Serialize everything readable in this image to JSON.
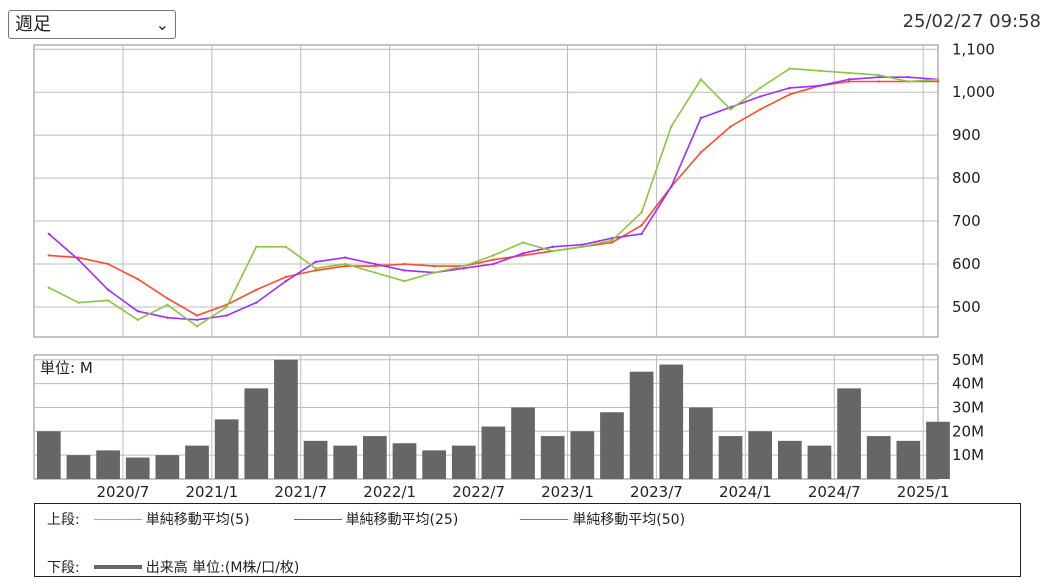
{
  "controls": {
    "period_value": "週足",
    "timestamp": "25/02/27 09:58"
  },
  "colors": {
    "candle_up": "#e53935",
    "candle_down": "#1f3a8a",
    "ma5": "#8cc63f",
    "ma25": "#9b30ff",
    "ma50": "#ff4a2a",
    "volume": "#666666",
    "grid": "#bcbcbc"
  },
  "chart_data": [
    {
      "type": "line",
      "panel": "price",
      "xlim": [
        "2020-01",
        "2025-02"
      ],
      "ylim": [
        430,
        1110
      ],
      "y_ticks": [
        "500",
        "600",
        "700",
        "800",
        "900",
        "1,000",
        "1,100"
      ],
      "x_tick_labels": [
        "2020/7",
        "2021/1",
        "2021/7",
        "2022/1",
        "2022/7",
        "2023/1",
        "2023/7",
        "2024/1",
        "2024/7",
        "2025/1"
      ],
      "x": [
        "2020-02",
        "2020-04",
        "2020-06",
        "2020-08",
        "2020-10",
        "2020-12",
        "2021-02",
        "2021-04",
        "2021-06",
        "2021-08",
        "2021-10",
        "2021-12",
        "2022-02",
        "2022-04",
        "2022-06",
        "2022-08",
        "2022-10",
        "2022-12",
        "2023-02",
        "2023-04",
        "2023-06",
        "2023-08",
        "2023-10",
        "2023-12",
        "2024-02",
        "2024-04",
        "2024-06",
        "2024-08",
        "2024-10",
        "2024-12",
        "2025-02"
      ],
      "series": [
        {
          "name": "単純移動平均(5)",
          "values": [
            545,
            510,
            515,
            470,
            505,
            455,
            500,
            640,
            640,
            590,
            600,
            580,
            560,
            580,
            595,
            620,
            650,
            630,
            640,
            655,
            720,
            920,
            1030,
            960,
            1010,
            1055,
            1050,
            1045,
            1040,
            1025,
            1030
          ]
        },
        {
          "name": "単純移動平均(25)",
          "values": [
            670,
            610,
            540,
            490,
            475,
            470,
            480,
            510,
            560,
            605,
            615,
            600,
            585,
            580,
            590,
            600,
            625,
            640,
            645,
            660,
            670,
            780,
            940,
            965,
            990,
            1010,
            1015,
            1030,
            1035,
            1035,
            1030
          ]
        },
        {
          "name": "単純移動平均(50)",
          "values": [
            620,
            615,
            600,
            565,
            520,
            480,
            505,
            540,
            570,
            585,
            595,
            595,
            600,
            595,
            595,
            610,
            620,
            630,
            640,
            650,
            690,
            780,
            860,
            920,
            960,
            995,
            1015,
            1025,
            1025,
            1025,
            1025
          ]
        }
      ]
    },
    {
      "type": "bar",
      "panel": "volume",
      "unit_label": "単位: M",
      "ylim": [
        0,
        52
      ],
      "y_ticks": [
        "10M",
        "20M",
        "30M",
        "40M",
        "50M"
      ],
      "x": [
        "2020-02",
        "2020-04",
        "2020-06",
        "2020-08",
        "2020-10",
        "2020-12",
        "2021-02",
        "2021-04",
        "2021-06",
        "2021-08",
        "2021-10",
        "2021-12",
        "2022-02",
        "2022-04",
        "2022-06",
        "2022-08",
        "2022-10",
        "2022-12",
        "2023-02",
        "2023-04",
        "2023-06",
        "2023-08",
        "2023-10",
        "2023-12",
        "2024-02",
        "2024-04",
        "2024-06",
        "2024-08",
        "2024-10",
        "2024-12",
        "2025-02"
      ],
      "values": [
        20,
        10,
        12,
        9,
        10,
        14,
        25,
        38,
        50,
        16,
        14,
        18,
        15,
        12,
        14,
        22,
        30,
        18,
        20,
        28,
        45,
        48,
        30,
        18,
        20,
        16,
        14,
        38,
        18,
        16,
        24
      ]
    }
  ],
  "legend": {
    "upper_label": "上段:",
    "lower_label": "下段:",
    "ma5_label": "単純移動平均(5)",
    "ma25_label": "単純移動平均(25)",
    "ma50_label": "単純移動平均(50)",
    "volume_label": "出来高 単位:(M株/口/枚)"
  }
}
